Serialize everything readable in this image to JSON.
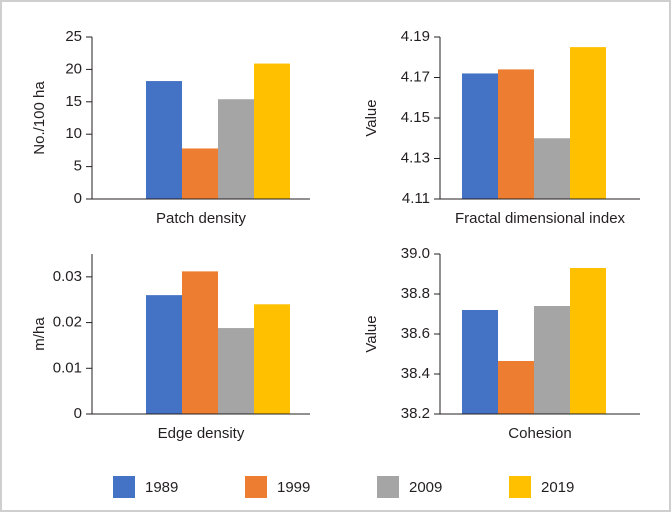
{
  "legend": {
    "series": [
      {
        "name": "1989",
        "color": "#4472c4"
      },
      {
        "name": "1999",
        "color": "#ed7d31"
      },
      {
        "name": "2009",
        "color": "#a5a5a5"
      },
      {
        "name": "2019",
        "color": "#ffc000"
      }
    ]
  },
  "chart_data": [
    {
      "type": "bar",
      "xlabel": "Patch density",
      "ylabel": "No./100 ha",
      "values": [
        18.2,
        7.8,
        15.4,
        20.9
      ],
      "ylim": [
        0,
        25
      ],
      "yticks": [
        0,
        5,
        10,
        15,
        20,
        25
      ]
    },
    {
      "type": "bar",
      "xlabel": "Fractal dimensional index",
      "ylabel": "Value",
      "values": [
        4.172,
        4.174,
        4.14,
        4.185
      ],
      "ylim": [
        4.11,
        4.19
      ],
      "yticks": [
        4.11,
        4.13,
        4.15,
        4.17,
        4.19
      ]
    },
    {
      "type": "bar",
      "xlabel": "Edge density",
      "ylabel": "m/ha",
      "values": [
        0.026,
        0.0312,
        0.0188,
        0.024
      ],
      "ylim": [
        0,
        0.035
      ],
      "yticks": [
        0,
        0.01,
        0.02,
        0.03
      ]
    },
    {
      "type": "bar",
      "xlabel": "Cohesion",
      "ylabel": "Value",
      "values": [
        38.72,
        38.465,
        38.74,
        38.93
      ],
      "ylim": [
        38.2,
        39.0
      ],
      "yticks": [
        38.2,
        38.4,
        38.6,
        38.8,
        {
          "value": 39.0,
          "label": "39.0"
        }
      ]
    }
  ]
}
